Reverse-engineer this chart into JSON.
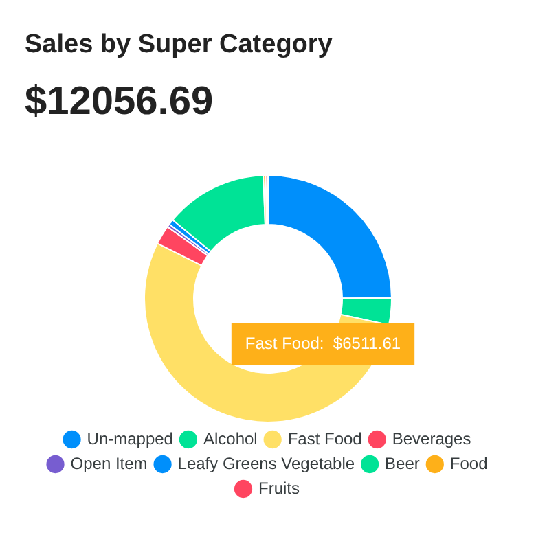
{
  "chart_data": {
    "type": "donut",
    "title": "Sales by Super Category",
    "subtitle": "$12056.69",
    "categories": [
      "Un-mapped",
      "Alcohol",
      "Fast Food",
      "Beverages",
      "Open Item",
      "Leafy Greens Vegetable",
      "Beer",
      "Food",
      "Fruits"
    ],
    "values": [
      24.9,
      3.5,
      54,
      2.5,
      0.4,
      0.7,
      13.4,
      0.3,
      0.3
    ],
    "colors": [
      "#008ffb",
      "#00e396",
      "#ffe066",
      "#ff4560",
      "#775dd0",
      "#008ffb",
      "#00e396",
      "#feb019",
      "#ff4560"
    ],
    "legend": "bottom",
    "annotations": [
      "Fast Food:  $6511.61"
    ]
  }
}
